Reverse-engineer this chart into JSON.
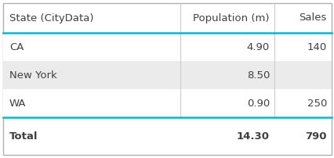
{
  "headers": [
    "State (CityData)",
    "Population (m)",
    "Sales"
  ],
  "rows": [
    {
      "state": "CA",
      "population": "4.90",
      "sales": "140",
      "bg": "#ffffff"
    },
    {
      "state": "New York",
      "population": "8.50",
      "sales": "",
      "bg": "#ebebeb"
    },
    {
      "state": "WA",
      "population": "0.90",
      "sales": "250",
      "bg": "#ffffff"
    }
  ],
  "total_row": {
    "state": "Total",
    "population": "14.30",
    "sales": "790"
  },
  "outer_border_color": "#b0b0b0",
  "header_line_color": "#00b8d4",
  "total_line_color": "#00b8d4",
  "header_font_size": 9.5,
  "row_font_size": 9.5,
  "total_font_size": 9.5,
  "text_color": "#404040",
  "background": "#ffffff",
  "fig_width": 4.27,
  "fig_height": 2.02,
  "dpi": 100
}
